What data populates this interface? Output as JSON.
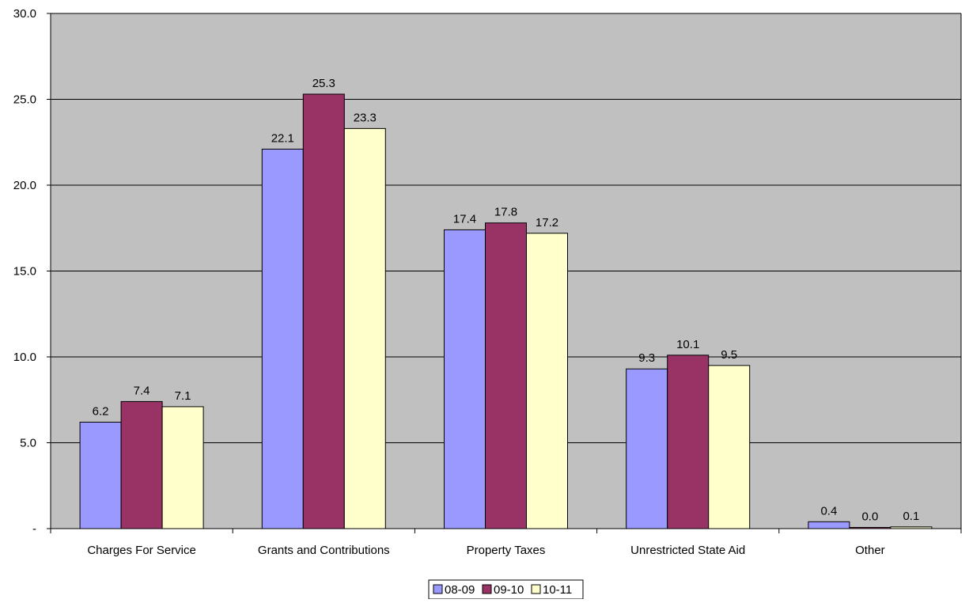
{
  "chart_data": {
    "type": "bar",
    "title": "",
    "xlabel": "",
    "ylabel": "",
    "ylim": [
      0,
      30
    ],
    "y_ticks": [
      0,
      5,
      10,
      15,
      20,
      25,
      30
    ],
    "y_tick_labels": [
      "-",
      "5.0",
      "10.0",
      "15.0",
      "20.0",
      "25.0",
      "30.0"
    ],
    "grid": true,
    "legend_position": "bottom",
    "categories": [
      "Charges For Service",
      "Grants and Contributions",
      "Property Taxes",
      "Unrestricted State Aid",
      "Other"
    ],
    "series": [
      {
        "name": "08-09",
        "values": [
          6.2,
          22.1,
          17.4,
          9.3,
          0.4
        ],
        "labels": [
          "6.2",
          "22.1",
          "17.4",
          "9.3",
          "0.4"
        ],
        "color": "#9999FF"
      },
      {
        "name": "09-10",
        "values": [
          7.4,
          25.3,
          17.8,
          10.1,
          0.0
        ],
        "labels": [
          "7.4",
          "25.3",
          "17.8",
          "10.1",
          "0.0"
        ],
        "color": "#993366"
      },
      {
        "name": "10-11",
        "values": [
          7.1,
          23.3,
          17.2,
          9.5,
          0.1
        ],
        "labels": [
          "7.1",
          "23.3",
          "17.2",
          "9.5",
          "0.1"
        ],
        "color": "#FFFFCC"
      }
    ],
    "plot_background": "#C0C0C0"
  }
}
